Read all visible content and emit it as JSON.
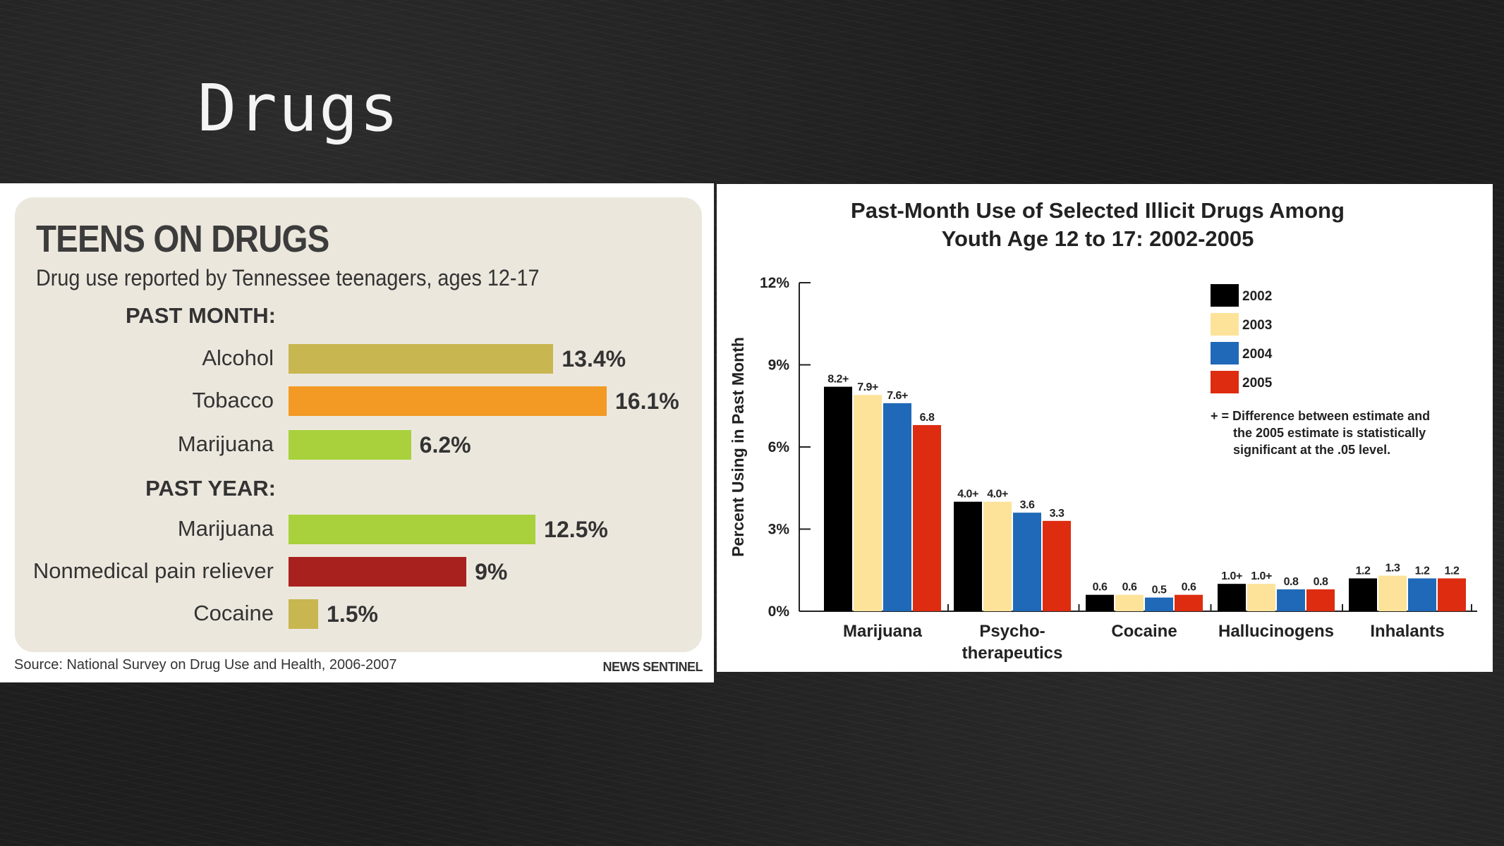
{
  "slide": {
    "title": "Drugs"
  },
  "left_chart": {
    "title": "TEENS ON DRUGS",
    "subtitle": "Drug use reported by Tennessee teenagers, ages 12-17",
    "sections": [
      {
        "heading": "PAST MONTH:",
        "items": [
          {
            "label": "Alcohol",
            "value": 13.4,
            "display": "13.4%",
            "color": "#c8b650"
          },
          {
            "label": "Tobacco",
            "value": 16.1,
            "display": "16.1%",
            "color": "#f39a25"
          },
          {
            "label": "Marijuana",
            "value": 6.2,
            "display": "6.2%",
            "color": "#a8d13c"
          }
        ]
      },
      {
        "heading": "PAST YEAR:",
        "items": [
          {
            "label": "Marijuana",
            "value": 12.5,
            "display": "12.5%",
            "color": "#a8d13c"
          },
          {
            "label": "Nonmedical pain reliever",
            "value": 9,
            "display": "9%",
            "color": "#a9211f"
          },
          {
            "label": "Cocaine",
            "value": 1.5,
            "display": "1.5%",
            "color": "#c8b650"
          }
        ]
      }
    ],
    "source": "Source: National Survey on Drug Use and Health, 2006-2007",
    "brand": "NEWS SENTINEL"
  },
  "chart_data": {
    "type": "bar",
    "title_lines": [
      "Past-Month Use of Selected Illicit Drugs Among",
      "Youth Age 12 to 17:  2002-2005"
    ],
    "ylabel": "Percent Using in Past Month",
    "ylim": [
      0,
      12
    ],
    "yticks": [
      0,
      3,
      6,
      9,
      12
    ],
    "ytick_labels": [
      "0%",
      "3%",
      "6%",
      "9%",
      "12%"
    ],
    "categories": [
      [
        "Marijuana"
      ],
      [
        "Psycho-",
        "therapeutics"
      ],
      [
        "Cocaine"
      ],
      [
        "Hallucinogens"
      ],
      [
        "Inhalants"
      ]
    ],
    "series": [
      {
        "name": "2002",
        "color": "#000000",
        "values": [
          8.2,
          4.0,
          0.6,
          1.0,
          1.2
        ],
        "labels": [
          "8.2+",
          "4.0+",
          "0.6",
          "1.0+",
          "1.2"
        ]
      },
      {
        "name": "2003",
        "color": "#fde39a",
        "values": [
          7.9,
          4.0,
          0.6,
          1.0,
          1.3
        ],
        "labels": [
          "7.9+",
          "4.0+",
          "0.6",
          "1.0+",
          "1.3"
        ]
      },
      {
        "name": "2004",
        "color": "#1f69b8",
        "values": [
          7.6,
          3.6,
          0.5,
          0.8,
          1.2
        ],
        "labels": [
          "7.6+",
          "3.6",
          "0.5",
          "0.8",
          "1.2"
        ]
      },
      {
        "name": "2005",
        "color": "#dd2c10",
        "values": [
          6.8,
          3.3,
          0.6,
          0.8,
          1.2
        ],
        "labels": [
          "6.8",
          "3.3",
          "0.6",
          "0.8",
          "1.2"
        ]
      }
    ],
    "legend_position": "top-right",
    "note_lines": [
      "+ = Difference between estimate and",
      "the 2005 estimate is statistically",
      "significant at the .05 level."
    ]
  }
}
